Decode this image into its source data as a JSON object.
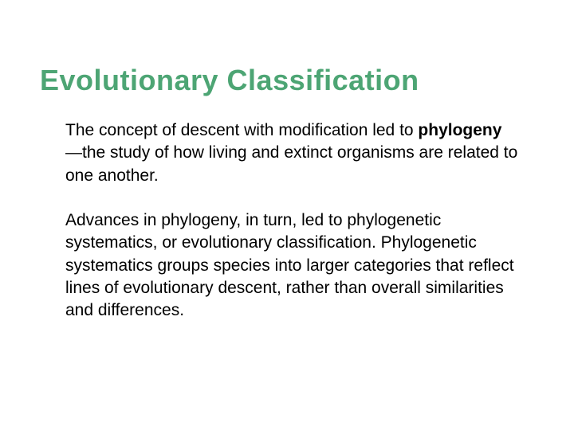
{
  "slide": {
    "title": "Evolutionary Classification",
    "title_color": "#4da574",
    "title_fontsize": 36,
    "body_fontsize": 21,
    "body_color": "#000000",
    "background_color": "#ffffff",
    "paragraphs": [
      {
        "pre": "The concept of descent with modification led to ",
        "bold": "phylogeny",
        "post": "—the study of how living and extinct organisms are related to one another."
      },
      {
        "pre": "Advances in phylogeny, in turn, led to phylogenetic systematics, or evolutionary classification. Phylogenetic systematics groups species into larger categories that reflect lines of evolutionary descent, rather than overall similarities and differences.",
        "bold": "",
        "post": ""
      }
    ]
  }
}
